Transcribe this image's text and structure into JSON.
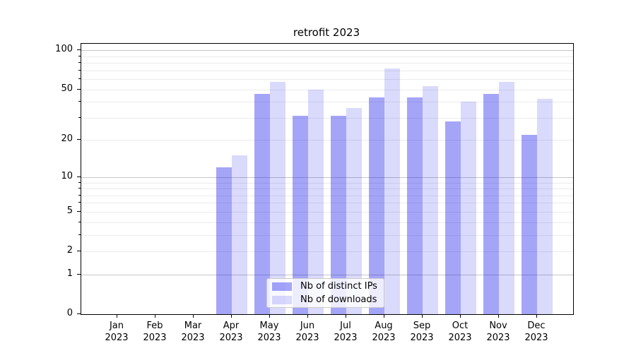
{
  "chart_data": {
    "type": "bar",
    "title": "retrofit 2023",
    "categories": [
      "Jan 2023",
      "Feb 2023",
      "Mar 2023",
      "Apr 2023",
      "May 2023",
      "Jun 2023",
      "Jul 2023",
      "Aug 2023",
      "Sep 2023",
      "Oct 2023",
      "Nov 2023",
      "Dec 2023"
    ],
    "series": [
      {
        "name": "Nb of distinct IPs",
        "color": "rgba(10,10,235,0.37)",
        "values": [
          0,
          0,
          0,
          12,
          46,
          31,
          31,
          43,
          43,
          28,
          46,
          22
        ]
      },
      {
        "name": "Nb of downloads",
        "color": "rgba(10,10,235,0.152)",
        "values": [
          0,
          0,
          0,
          15,
          57,
          50,
          36,
          72,
          53,
          40,
          57,
          42
        ]
      }
    ],
    "xlabel": "",
    "ylabel": "",
    "yscale": "symlog",
    "ylim": [
      0,
      112
    ],
    "y_tick_labels": [
      0,
      1,
      2,
      5,
      10,
      20,
      50,
      100
    ],
    "y_major_gridlines": [
      1,
      10,
      100
    ],
    "y_minor_gridlines": [
      2,
      3,
      4,
      5,
      6,
      7,
      8,
      9,
      20,
      30,
      40,
      50,
      60,
      70,
      80,
      90
    ],
    "grid": true,
    "legend_position": "lower center"
  },
  "colors": {
    "major_grid": "#c6c6c6",
    "minor_grid": "#ebebeb",
    "axis": "#000000",
    "text": "#000000",
    "legend_border": "#cccccc"
  }
}
